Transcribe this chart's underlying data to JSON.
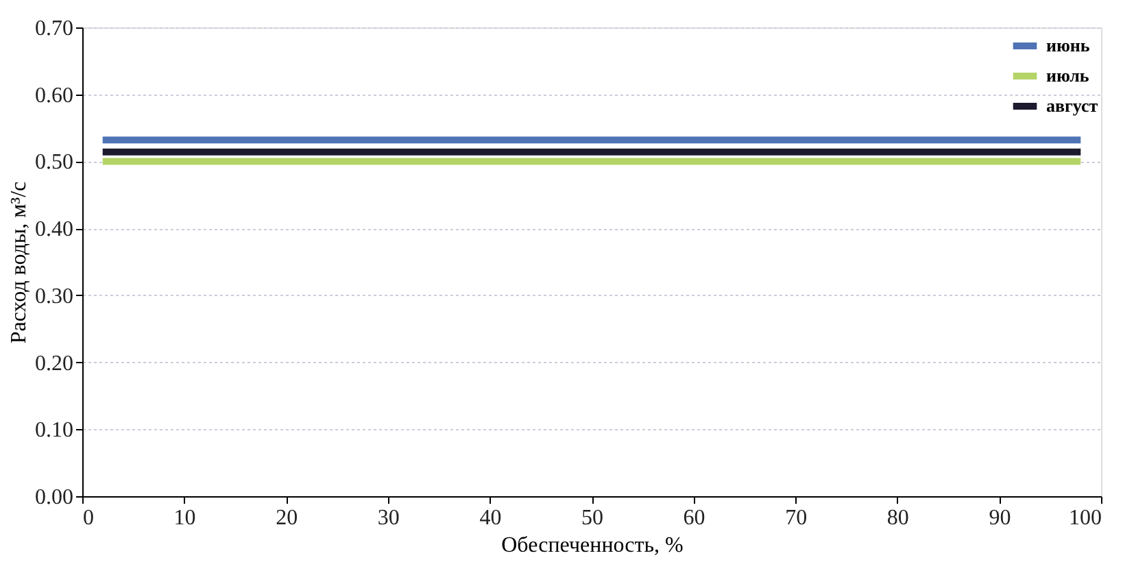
{
  "chart_data": {
    "type": "line",
    "xlabel": "Обеспеченность, %",
    "ylabel": "Расход воды, м³/с",
    "x": [
      2,
      98
    ],
    "series": [
      {
        "name": "июнь",
        "color": "#4f73b5",
        "values": [
          0.532,
          0.532
        ]
      },
      {
        "name": "июль",
        "color": "#b5d468",
        "values": [
          0.5,
          0.5
        ]
      },
      {
        "name": "август",
        "color": "#1e1a2e",
        "values": [
          0.514,
          0.514
        ]
      }
    ],
    "xlim": [
      0,
      100
    ],
    "xticks": [
      0,
      10,
      20,
      30,
      40,
      50,
      60,
      70,
      80,
      90,
      100
    ],
    "ylim": [
      0,
      0.7
    ],
    "yticks": [
      {
        "value": 0,
        "label": "0.00"
      },
      {
        "value": 0.1,
        "label": "0.10"
      },
      {
        "value": 0.2,
        "label": "0.20"
      },
      {
        "value": 0.3,
        "label": "0.30"
      },
      {
        "value": 0.4,
        "label": "0.40"
      },
      {
        "value": 0.5,
        "label": "0.50"
      },
      {
        "value": 0.6,
        "label": "0.60"
      },
      {
        "value": 0.7,
        "label": "0.70"
      }
    ],
    "grid": "y",
    "legend": "top right",
    "marker": "none",
    "line_style": "solid"
  }
}
